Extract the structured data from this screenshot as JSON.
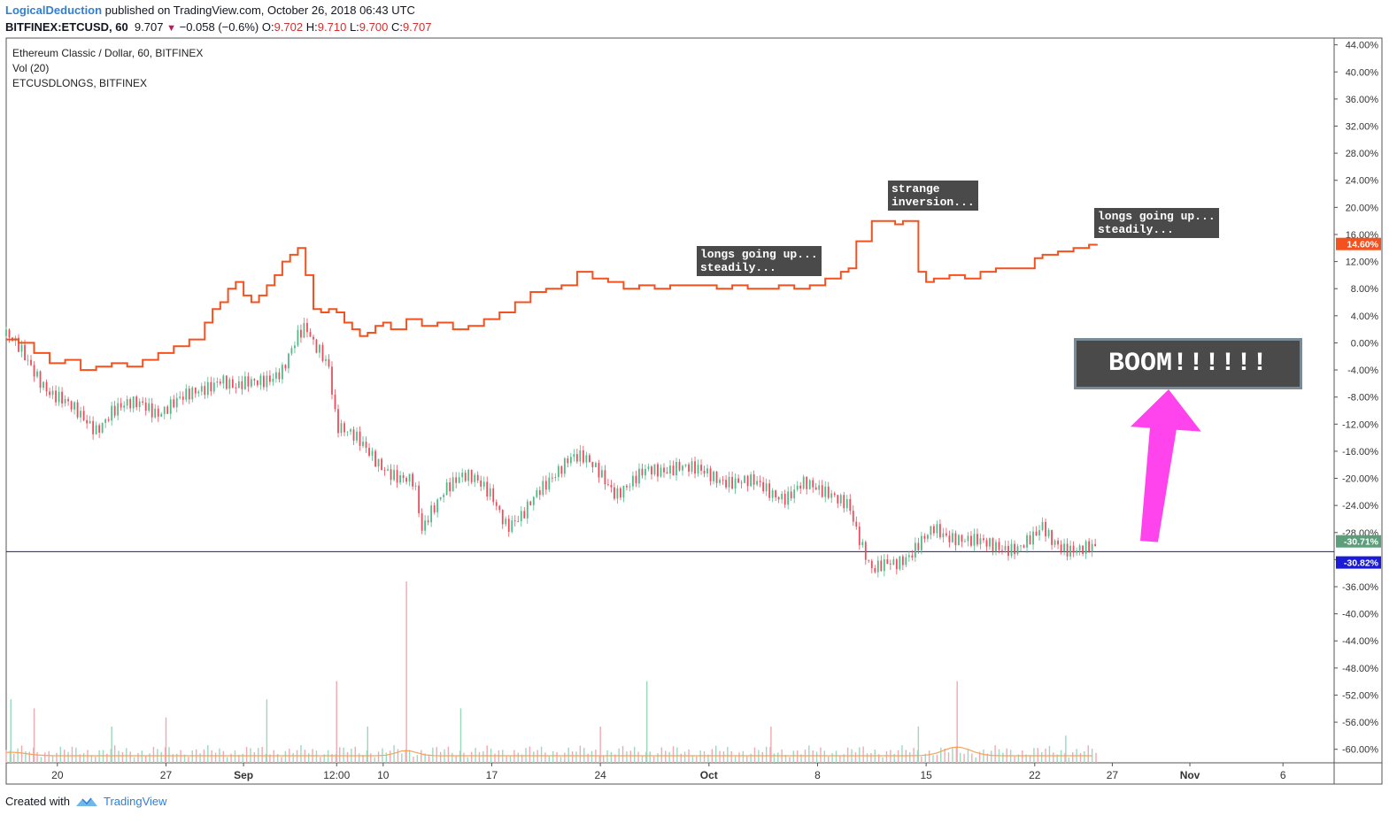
{
  "header": {
    "author": "LogicalDeduction",
    "published_text": " published on TradingView.com, October 26, 2018 06:43 UTC",
    "symbol": "BITFINEX:ETCUSD, 60",
    "last": "9.707",
    "arrow": "▼",
    "change": "−0.058 (−0.6%)",
    "o_label": "O:",
    "o_value": "9.702",
    "h_label": "H:",
    "h_value": "9.710",
    "l_label": "L:",
    "l_value": "9.700",
    "c_label": "C:",
    "c_value": "9.707"
  },
  "legend": {
    "main": "Ethereum Classic / Dollar, 60, BITFINEX",
    "vol": "Vol (20)",
    "overlay": "ETCUSDLONGS, BITFINEX"
  },
  "annotations": {
    "note1": "longs going up...\nsteadily...",
    "note2": "strange\ninversion...",
    "note3": "longs going up...\nsteadily...",
    "boom": "BOOM!!!!!!"
  },
  "footer": {
    "created_with": "Created with",
    "brand": "TradingView"
  },
  "colors": {
    "longs_line": "#f4511e",
    "candle_up": "#53b987",
    "candle_down": "#eb4d5c",
    "hline": "#1a1aa8",
    "boom_arrow": "#ff44ee",
    "tag_longs": "#f4511e",
    "tag_etc": "#5a9e7a",
    "tag_hline": "#1a1ad8"
  },
  "chart_data": {
    "type": "line",
    "yaxis_unit": "percent",
    "ylim": [
      -62,
      45
    ],
    "y_ticks": [
      "44.00%",
      "40.00%",
      "36.00%",
      "32.00%",
      "28.00%",
      "24.00%",
      "20.00%",
      "16.00%",
      "12.00%",
      "8.00%",
      "4.00%",
      "0.00%",
      "-4.00%",
      "-8.00%",
      "-12.00%",
      "-16.00%",
      "-20.00%",
      "-24.00%",
      "-28.00%",
      "-32.00%",
      "-36.00%",
      "-40.00%",
      "-44.00%",
      "-48.00%",
      "-52.00%",
      "-56.00%",
      "-60.00%"
    ],
    "x_ticks": [
      "20",
      "27",
      "Sep",
      "12:00",
      "10",
      "17",
      "24",
      "Oct",
      "8",
      "15",
      "22",
      "27",
      "Nov",
      "6"
    ],
    "x_tick_days": [
      0,
      7,
      12,
      18,
      21,
      28,
      35,
      42,
      49,
      56,
      63,
      68,
      73,
      79
    ],
    "x_range_days": [
      -3.3,
      82.3
    ],
    "series": [
      {
        "name": "ETCUSDLONGS, BITFINEX",
        "x": [
          -3.3,
          -2.5,
          -1.5,
          -0.5,
          0.5,
          1.5,
          2.5,
          3.5,
          4.5,
          5.5,
          6.5,
          7.5,
          8.5,
          9.5,
          10.0,
          10.5,
          11.0,
          11.5,
          12.0,
          12.5,
          13.0,
          13.5,
          14.0,
          14.5,
          15.0,
          15.5,
          16.0,
          16.5,
          17.0,
          17.5,
          18.0,
          18.5,
          19.0,
          19.5,
          20.0,
          20.5,
          21.0,
          21.5,
          22.5,
          23.5,
          24.5,
          25.5,
          26.5,
          27.5,
          28.5,
          29.5,
          30.5,
          31.5,
          32.5,
          33.5,
          34.5,
          35.5,
          36.5,
          37.5,
          38.5,
          39.5,
          40.5,
          41.5,
          42.5,
          43.5,
          44.5,
          45.5,
          46.5,
          47.5,
          48.5,
          49.5,
          50.5,
          51.0,
          51.5,
          52.5,
          53.5,
          54.0,
          54.5,
          55.5,
          56.0,
          56.5,
          57.5,
          58.5,
          59.5,
          60.5,
          61.5,
          62.5,
          63.0,
          63.5,
          64.5,
          65.5,
          66.5,
          67.0
        ],
        "values": [
          0.5,
          0.0,
          -1.5,
          -3.0,
          -2.5,
          -4.0,
          -3.5,
          -3.0,
          -3.5,
          -2.5,
          -1.5,
          -0.5,
          0.5,
          3.0,
          5.0,
          6.0,
          8.0,
          9.0,
          7.0,
          6.0,
          7.0,
          8.5,
          10.0,
          12.0,
          13.0,
          14.0,
          10.0,
          5.0,
          4.5,
          5.0,
          4.5,
          3.0,
          2.0,
          1.0,
          1.5,
          2.5,
          3.0,
          2.0,
          3.5,
          2.5,
          3.0,
          2.0,
          2.5,
          3.5,
          4.5,
          6.0,
          7.5,
          8.0,
          8.5,
          10.5,
          9.5,
          9.0,
          8.0,
          8.5,
          8.0,
          8.5,
          8.5,
          8.5,
          8.0,
          8.5,
          8.0,
          8.0,
          8.5,
          8.0,
          8.5,
          9.5,
          10.5,
          11.0,
          15.0,
          18.0,
          18.0,
          17.5,
          18.0,
          10.5,
          9.0,
          9.5,
          10.0,
          9.5,
          10.5,
          11.0,
          11.0,
          11.0,
          12.5,
          13.0,
          13.5,
          14.0,
          14.5,
          14.6
        ],
        "last_tag": "14.60%"
      },
      {
        "name": "Ethereum Classic / Dollar, 60, BITFINEX",
        "x": [
          -3.3,
          -2.5,
          -1.5,
          -0.5,
          0.5,
          1.5,
          2.5,
          3.5,
          4.5,
          5.5,
          6.5,
          7.5,
          8.5,
          9.5,
          10.5,
          11.5,
          12.5,
          13.5,
          14.5,
          15.5,
          16.0,
          16.5,
          17.0,
          17.5,
          18.0,
          19.0,
          20.0,
          21.0,
          22.0,
          23.0,
          23.5,
          24.0,
          25.0,
          26.0,
          27.0,
          28.0,
          29.0,
          30.0,
          31.0,
          32.0,
          33.0,
          34.0,
          35.0,
          36.0,
          37.0,
          38.0,
          39.0,
          40.0,
          41.0,
          42.0,
          43.0,
          44.0,
          45.0,
          46.0,
          47.0,
          48.0,
          49.0,
          50.0,
          51.0,
          51.5,
          52.0,
          52.5,
          53.0,
          53.5,
          54.0,
          55.0,
          56.0,
          56.5,
          57.0,
          58.0,
          59.0,
          60.0,
          61.0,
          62.0,
          63.0,
          63.5,
          64.0,
          65.0,
          66.0,
          67.0
        ],
        "values": [
          1.0,
          -1.0,
          -4.0,
          -7.0,
          -9.0,
          -11.0,
          -12.5,
          -10.0,
          -9.5,
          -9.0,
          -10.0,
          -9.0,
          -8.0,
          -6.5,
          -5.0,
          -7.0,
          -6.0,
          -5.0,
          -4.0,
          0.5,
          2.0,
          0.0,
          -1.0,
          -3.0,
          -12.0,
          -14.0,
          -16.0,
          -18.0,
          -20.0,
          -21.0,
          -28.0,
          -25.0,
          -21.0,
          -20.0,
          -20.5,
          -22.0,
          -27.0,
          -26.0,
          -22.0,
          -19.0,
          -17.0,
          -17.5,
          -19.0,
          -22.0,
          -21.0,
          -19.0,
          -18.5,
          -18.0,
          -19.0,
          -19.5,
          -20.0,
          -20.5,
          -21.0,
          -22.0,
          -22.5,
          -21.0,
          -22.0,
          -22.0,
          -23.5,
          -28.0,
          -31.5,
          -34.0,
          -33.0,
          -32.0,
          -32.0,
          -31.5,
          -29.0,
          -27.5,
          -28.0,
          -28.5,
          -29.5,
          -30.0,
          -30.0,
          -30.0,
          -29.0,
          -27.5,
          -29.0,
          -30.0,
          -30.5,
          -30.7
        ],
        "last_tag": "-30.71%"
      }
    ],
    "horizontal_line": {
      "value": -30.82,
      "tag": "-30.82%"
    },
    "volume": {
      "name": "Vol (20)",
      "spikes_x": [
        -3.0,
        -1.5,
        3.5,
        7.0,
        13.5,
        18.0,
        20.0,
        22.5,
        26.0,
        35.0,
        38.0,
        46.0,
        55.5,
        58.0,
        65.0
      ],
      "spikes_rel": [
        0.35,
        0.3,
        0.2,
        0.25,
        0.35,
        0.45,
        0.2,
        1.0,
        0.3,
        0.2,
        0.45,
        0.2,
        0.2,
        0.45,
        0.15
      ]
    }
  }
}
